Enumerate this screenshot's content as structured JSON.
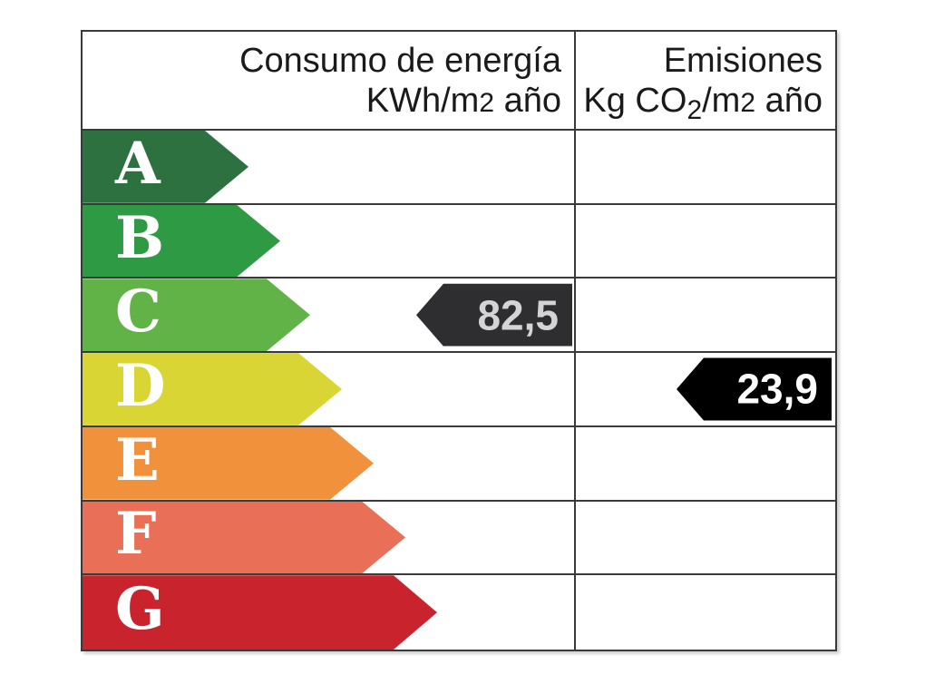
{
  "page": {
    "background": "#ffffff"
  },
  "table": {
    "border_color": "#3a3a3a",
    "header": {
      "consumption_title": "Consumo de energía",
      "consumption_unit_prefix": "KWh/m",
      "consumption_unit_exp": "2",
      "consumption_unit_suffix": " año",
      "emissions_title": "Emisiones",
      "emissions_unit_prefix": "Kg CO",
      "emissions_unit_sub": "2",
      "emissions_unit_mid": "/m",
      "emissions_unit_exp": "2",
      "emissions_unit_suffix": " año"
    },
    "grades": [
      {
        "label": "A",
        "color": "#2d7141",
        "arrow_width": 183
      },
      {
        "label": "B",
        "color": "#2f9a44",
        "arrow_width": 218
      },
      {
        "label": "C",
        "color": "#62b347",
        "arrow_width": 251
      },
      {
        "label": "D",
        "color": "#d8d535",
        "arrow_width": 286
      },
      {
        "label": "E",
        "color": "#f2913c",
        "arrow_width": 321
      },
      {
        "label": "F",
        "color": "#ea6f57",
        "arrow_width": 356
      },
      {
        "label": "G",
        "color": "#c9242e",
        "arrow_width": 391
      }
    ],
    "ratings": {
      "consumption": {
        "value": "82,5",
        "grade": "C",
        "arrow_color": "#2e2e30",
        "text_color": "#d4d4d6"
      },
      "emissions": {
        "value": "23,9",
        "grade": "D",
        "arrow_color": "#000000",
        "text_color": "#ffffff"
      }
    }
  },
  "chart_data": {
    "type": "table",
    "title": "",
    "categories": [
      "A",
      "B",
      "C",
      "D",
      "E",
      "F",
      "G"
    ],
    "columns": [
      "Consumo de energía KWh/m2 año",
      "Emisiones Kg CO2/m2 año"
    ],
    "values": [
      {
        "column": "Consumo de energía KWh/m2 año",
        "grade": "C",
        "value": 82.5
      },
      {
        "column": "Emisiones Kg CO2/m2 año",
        "grade": "D",
        "value": 23.9
      }
    ],
    "layout": "energy-efficiency-scale, grade arrows widen from A (best, dark green) to G (worst, red)"
  }
}
